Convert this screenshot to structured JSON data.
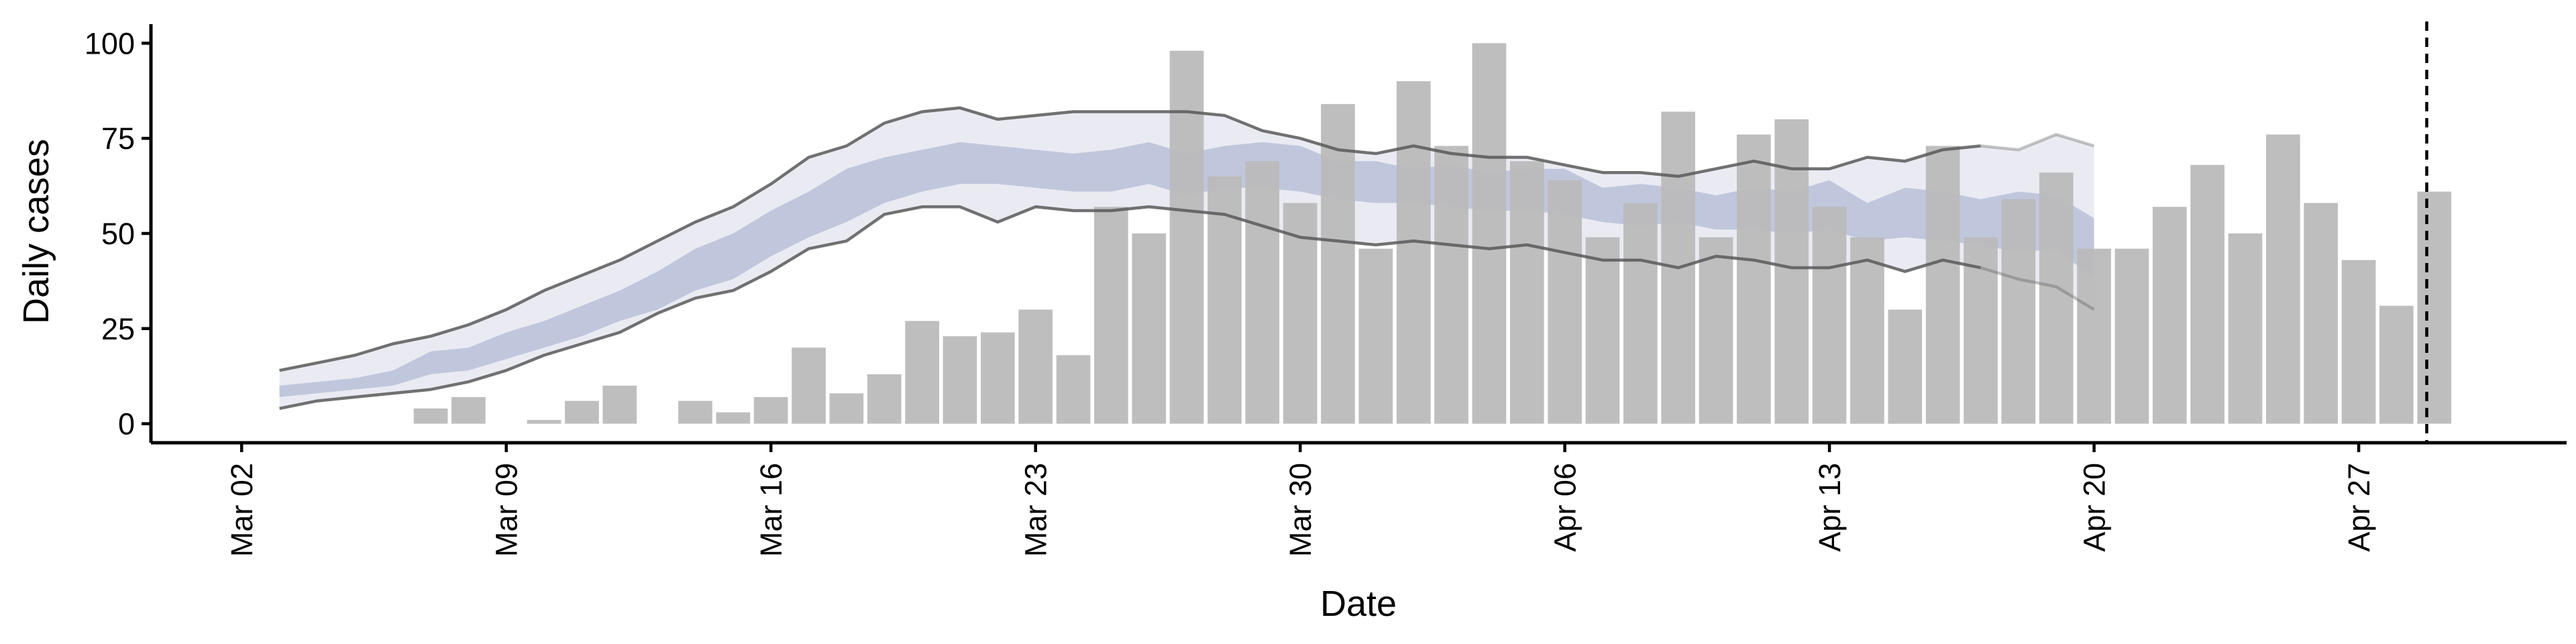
{
  "chart_data": {
    "type": "bar",
    "xlabel": "Date",
    "ylabel": "Daily cases",
    "ylim": [
      -5,
      105
    ],
    "y_ticks": [
      0,
      25,
      50,
      75,
      100
    ],
    "x_ticks": [
      {
        "label": "Mar 02",
        "day": 0
      },
      {
        "label": "Mar 09",
        "day": 7
      },
      {
        "label": "Mar 16",
        "day": 14
      },
      {
        "label": "Mar 23",
        "day": 21
      },
      {
        "label": "Mar 30",
        "day": 28
      },
      {
        "label": "Apr 06",
        "day": 35
      },
      {
        "label": "Apr 13",
        "day": 42
      },
      {
        "label": "Apr 20",
        "day": 49
      },
      {
        "label": "Apr 27",
        "day": 56
      }
    ],
    "x_range_days": [
      -2.4,
      61.5
    ],
    "bars": {
      "color": "#bababa",
      "start_day": 4,
      "values": [
        0,
        4,
        7,
        0,
        1,
        6,
        10,
        0,
        6,
        3,
        7,
        20,
        8,
        13,
        27,
        23,
        24,
        30,
        18,
        57,
        50,
        98,
        65,
        69,
        58,
        84,
        46,
        90,
        73,
        100,
        69,
        64,
        49,
        58,
        82,
        49,
        76,
        80,
        57,
        49,
        30,
        73,
        49,
        59,
        66,
        46,
        46,
        57,
        68,
        50,
        76,
        58,
        43,
        31,
        61
      ]
    },
    "estimate": {
      "start_day": 1,
      "outer_color": "#e6e8f0",
      "inner_color": "#b9c1d9",
      "line_color": "#595959",
      "nowcast_from_day": 46,
      "upper_90": [
        14,
        16,
        18,
        21,
        23,
        26,
        30,
        35,
        39,
        43,
        48,
        53,
        57,
        63,
        70,
        73,
        79,
        82,
        83,
        80,
        81,
        82,
        82,
        82,
        82,
        81,
        77,
        75,
        72,
        71,
        73,
        71,
        70,
        70,
        68,
        66,
        66,
        65,
        67,
        69,
        67,
        67,
        70,
        69,
        72,
        73,
        72,
        76,
        73
      ],
      "upper_50": [
        10,
        11,
        12,
        14,
        19,
        20,
        24,
        27,
        31,
        35,
        40,
        46,
        50,
        56,
        61,
        67,
        70,
        72,
        74,
        73,
        72,
        71,
        72,
        74,
        71,
        73,
        74,
        73,
        69,
        69,
        67,
        68,
        66,
        67,
        67,
        62,
        63,
        62,
        60,
        62,
        61,
        64,
        58,
        62,
        61,
        59,
        61,
        60,
        54
      ],
      "lower_50": [
        7,
        8,
        9,
        10,
        13,
        14,
        17,
        20,
        23,
        27,
        30,
        35,
        38,
        44,
        49,
        53,
        58,
        61,
        63,
        63,
        62,
        61,
        61,
        63,
        60,
        62,
        62,
        61,
        59,
        58,
        58,
        57,
        56,
        56,
        55,
        53,
        52,
        53,
        51,
        51,
        50,
        51,
        48,
        49,
        48,
        47,
        45,
        46,
        38
      ],
      "lower_90": [
        4,
        6,
        7,
        8,
        9,
        11,
        14,
        18,
        21,
        24,
        29,
        33,
        35,
        40,
        46,
        48,
        55,
        57,
        57,
        53,
        57,
        56,
        56,
        57,
        56,
        55,
        52,
        49,
        48,
        47,
        48,
        47,
        46,
        47,
        45,
        43,
        43,
        41,
        44,
        43,
        41,
        41,
        43,
        40,
        43,
        41,
        38,
        36,
        30
      ]
    },
    "reference_line": {
      "day": 57.8,
      "style": "dashed"
    }
  }
}
